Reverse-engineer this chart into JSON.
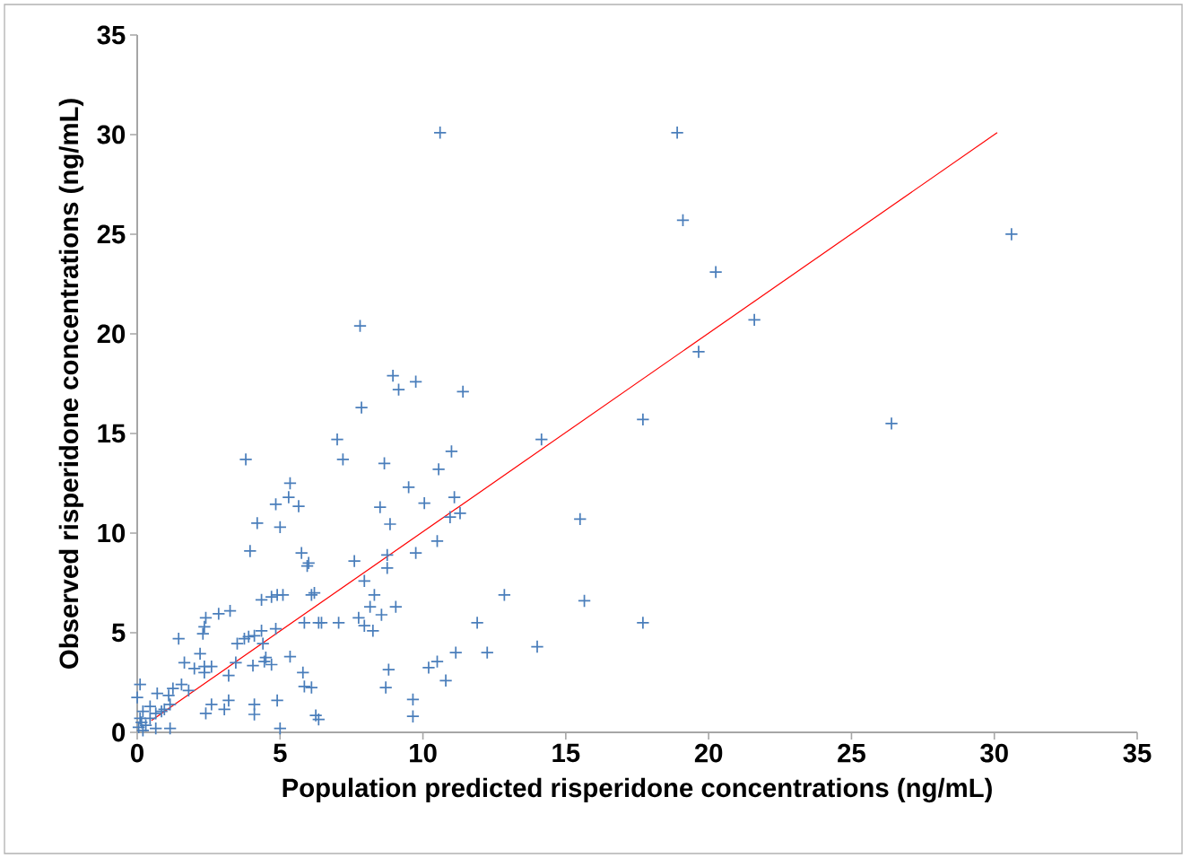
{
  "chart_data": {
    "type": "scatter",
    "xlabel": "Population predicted risperidone concentrations (ng/mL)",
    "ylabel": "Observed risperidone concentrations  (ng/mL)",
    "xlim": [
      0,
      35
    ],
    "ylim": [
      0,
      35
    ],
    "xticks": [
      0,
      5,
      10,
      15,
      20,
      25,
      30,
      35
    ],
    "yticks": [
      0,
      5,
      10,
      15,
      20,
      25,
      30,
      35
    ],
    "series": [
      {
        "marker": "cross",
        "color": "#4a7ebb",
        "x": [
          10.6,
          18.9,
          19.1,
          30.6,
          20.25,
          21.6,
          19.65,
          17.7,
          26.4,
          14.15,
          15.5,
          15.65,
          17.7,
          14.0,
          12.85,
          11.9,
          12.25,
          11.4,
          11.0,
          10.55,
          11.1,
          11.3,
          10.95,
          10.5,
          10.05,
          9.5,
          9.75,
          8.95,
          9.15,
          7.8,
          7.85,
          7.0,
          7.2,
          8.65,
          8.5,
          8.85,
          9.75,
          8.75,
          7.6,
          8.75,
          7.95,
          8.3,
          9.05,
          8.15,
          8.55,
          7.75,
          7.95,
          8.25,
          7.05,
          6.1,
          6.35,
          5.85,
          8.8,
          8.7,
          9.65,
          9.65,
          10.8,
          10.2,
          10.5,
          11.15,
          3.8,
          5.35,
          5.3,
          4.85,
          5.65,
          4.2,
          5.0,
          3.95,
          5.75,
          6.0,
          5.95,
          6.2,
          4.35,
          4.7,
          4.9,
          5.1,
          6.45,
          2.85,
          3.25,
          2.4,
          2.35,
          2.3,
          1.45,
          3.5,
          3.75,
          3.9,
          4.1,
          4.35,
          4.85,
          4.4,
          2.2,
          1.65,
          2.0,
          2.35,
          2.6,
          2.35,
          3.45,
          4.05,
          4.45,
          4.5,
          4.7,
          5.35,
          3.2,
          5.8,
          5.85,
          6.1,
          1.55,
          1.8,
          1.25,
          0.1,
          0.7,
          1.1,
          2.6,
          3.2,
          3.05,
          2.4,
          4.1,
          4.1,
          4.9,
          6.25,
          6.35,
          5.0,
          1.15,
          0.65,
          0.65,
          0.95,
          1.15,
          0.45,
          0.2,
          0.0,
          0.1,
          0.15,
          0.05,
          0.3,
          0.2,
          0.45,
          0.85
        ],
        "values": [
          30.1,
          30.1,
          25.7,
          25.0,
          23.1,
          20.7,
          19.1,
          15.7,
          15.5,
          14.7,
          10.7,
          6.6,
          5.5,
          4.3,
          6.9,
          5.5,
          4.0,
          17.1,
          14.1,
          13.2,
          11.8,
          11.0,
          10.8,
          9.6,
          11.5,
          12.3,
          17.6,
          17.9,
          17.2,
          20.4,
          16.3,
          14.7,
          13.7,
          13.5,
          11.3,
          10.45,
          9.0,
          8.9,
          8.6,
          8.25,
          7.6,
          6.9,
          6.3,
          6.3,
          5.9,
          5.75,
          5.35,
          5.1,
          5.5,
          6.9,
          5.5,
          5.5,
          3.15,
          2.25,
          1.65,
          0.8,
          2.6,
          3.25,
          3.55,
          4.0,
          13.7,
          12.5,
          11.8,
          11.45,
          11.35,
          10.5,
          10.3,
          9.1,
          9.0,
          8.5,
          8.35,
          7.0,
          6.65,
          6.8,
          6.9,
          6.9,
          5.5,
          5.95,
          6.1,
          5.75,
          5.3,
          4.95,
          4.7,
          4.45,
          4.7,
          4.8,
          4.85,
          5.1,
          5.2,
          4.45,
          3.95,
          3.5,
          3.2,
          3.3,
          3.3,
          3.0,
          3.5,
          3.35,
          3.55,
          3.75,
          3.4,
          3.8,
          2.85,
          3.0,
          2.3,
          2.25,
          2.4,
          2.1,
          2.2,
          2.4,
          1.95,
          1.85,
          1.4,
          1.6,
          1.15,
          0.95,
          1.4,
          0.9,
          1.6,
          0.85,
          0.65,
          0.2,
          0.2,
          0.2,
          0.95,
          1.15,
          1.4,
          1.3,
          1.05,
          1.75,
          0.7,
          0.5,
          0.25,
          0.35,
          0.1,
          0.7,
          1.05
        ]
      },
      {
        "type": "line",
        "color": "#ff0000",
        "x": [
          0.5,
          30.1
        ],
        "values": [
          0.6,
          30.1
        ]
      }
    ]
  }
}
